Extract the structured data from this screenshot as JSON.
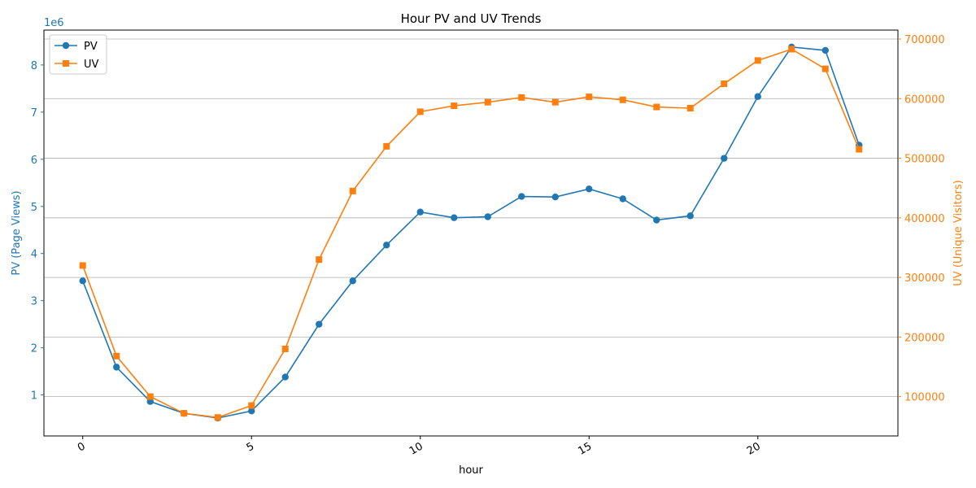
{
  "chart_data": {
    "type": "line",
    "title": "Hour PV and UV Trends",
    "xlabel": "hour",
    "ylabel_left": "PV (Page Views)",
    "ylabel_right": "UV (Unique Visitors)",
    "left_axis_multiplier": "1e6",
    "xlim": [
      -1.15,
      24.15
    ],
    "ylim_left": [
      130000,
      8740000
    ],
    "ylim_right": [
      34000,
      715000
    ],
    "x_ticks": [
      0,
      5,
      10,
      15,
      20
    ],
    "x_tick_labels": [
      "0",
      "5",
      "10",
      "15",
      "20"
    ],
    "y_left_ticks": [
      1000000,
      2000000,
      3000000,
      4000000,
      5000000,
      6000000,
      7000000,
      8000000
    ],
    "y_left_tick_labels": [
      "1",
      "2",
      "3",
      "4",
      "5",
      "6",
      "7",
      "8"
    ],
    "y_right_ticks": [
      100000,
      200000,
      300000,
      400000,
      500000,
      600000,
      700000
    ],
    "y_right_tick_labels": [
      "100000",
      "200000",
      "300000",
      "400000",
      "500000",
      "600000",
      "700000"
    ],
    "grid": "horizontal lines at right-axis ticks",
    "legend_placement": "top-left",
    "x": [
      0,
      1,
      2,
      3,
      4,
      5,
      6,
      7,
      8,
      9,
      10,
      11,
      12,
      13,
      14,
      15,
      16,
      17,
      18,
      19,
      20,
      21,
      22,
      23
    ],
    "series": [
      {
        "name": "PV",
        "axis": "left",
        "color": "#1f77b4",
        "marker": "circle",
        "values": [
          3420000,
          1590000,
          860000,
          610000,
          510000,
          660000,
          1380000,
          2500000,
          3420000,
          4180000,
          4880000,
          4760000,
          4780000,
          5210000,
          5200000,
          5370000,
          5160000,
          4710000,
          4800000,
          6020000,
          7330000,
          8380000,
          8310000,
          6300000
        ]
      },
      {
        "name": "UV",
        "axis": "right",
        "color": "#ff7f0e",
        "marker": "square",
        "values": [
          320000,
          168000,
          100000,
          72000,
          65000,
          85000,
          180000,
          330000,
          445000,
          520000,
          578000,
          588000,
          594000,
          602000,
          594000,
          603000,
          598000,
          586000,
          584000,
          625000,
          664000,
          683000,
          650000,
          515000
        ]
      }
    ]
  }
}
